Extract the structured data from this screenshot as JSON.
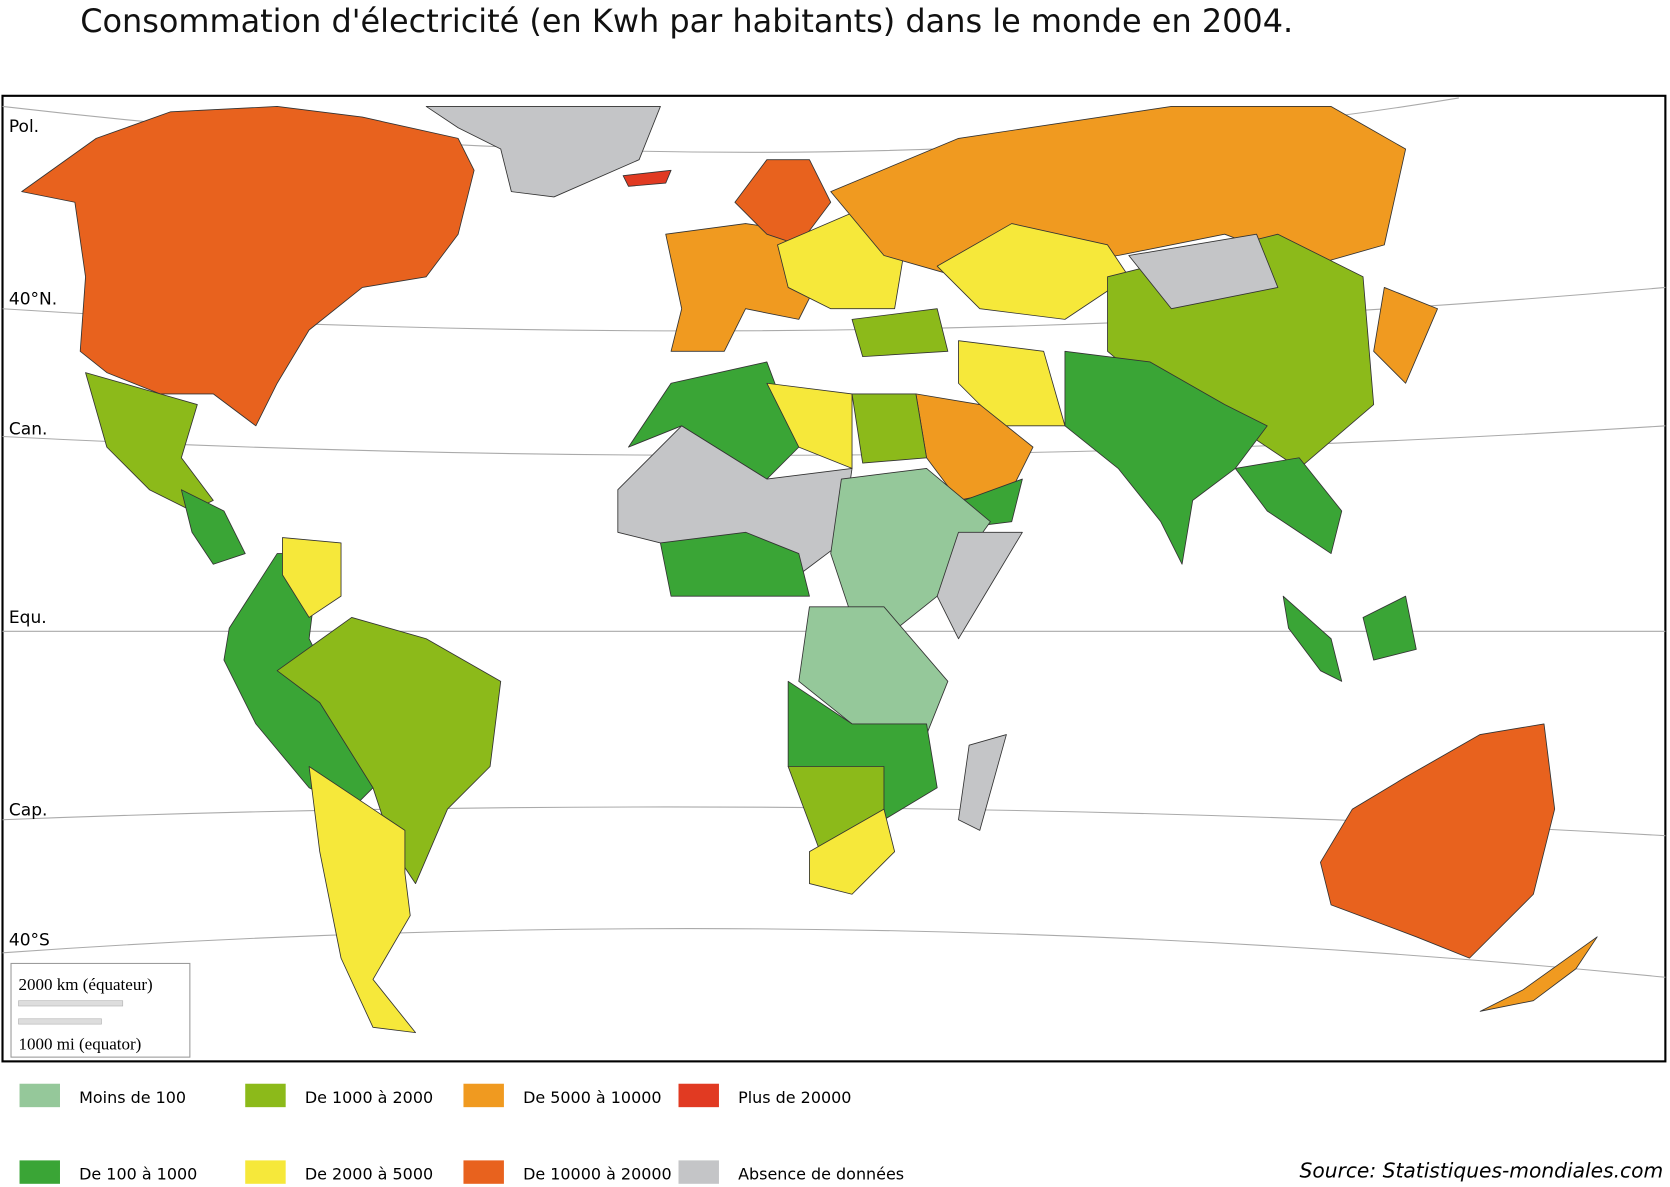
{
  "title": "Consommation d'électricité (en Kwh par habitants) dans le monde en 2004.",
  "map": {
    "parallels": [
      "Pol.",
      "40°N.",
      "Can.",
      "Equ.",
      "Cap.",
      "40°S"
    ],
    "scale": [
      "2000 km (équateur)",
      "1000 mi (equator)"
    ]
  },
  "legend": [
    {
      "label": "Moins de 100",
      "color": "#95c89a"
    },
    {
      "label": "De 100 à 1000",
      "color": "#3aa536"
    },
    {
      "label": "De 1000 à 2000",
      "color": "#8cba1a"
    },
    {
      "label": "De 2000 à 5000",
      "color": "#f6e83a"
    },
    {
      "label": "De 5000 à 10000",
      "color": "#f09a20"
    },
    {
      "label": "De 10000 à 20000",
      "color": "#e8621e"
    },
    {
      "label": "Plus de 20000",
      "color": "#e13a22"
    },
    {
      "label": "Absence de données",
      "color": "#c4c5c7"
    }
  ],
  "source": "Source:  Statistiques-mondiales.com"
}
